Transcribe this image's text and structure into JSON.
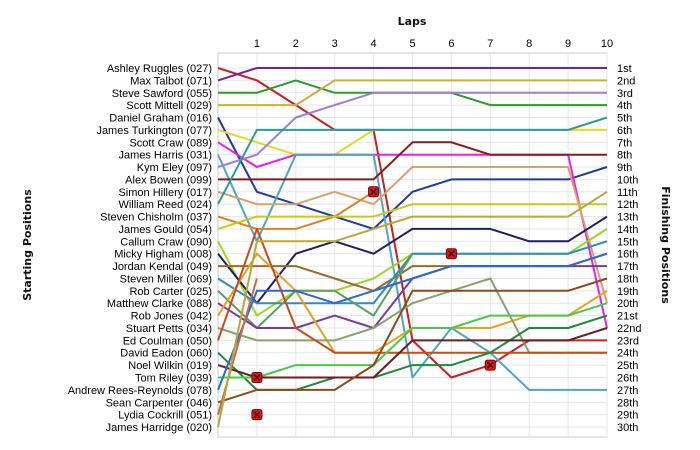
{
  "chart_data": {
    "type": "line",
    "title": "",
    "xlabel": "Laps",
    "ylabel_left": "Starting Positions",
    "ylabel_right": "Finishing Positions",
    "laps": [
      1,
      2,
      3,
      4,
      5,
      6,
      7,
      8,
      9,
      10
    ],
    "lap_labels": [
      "1",
      "2",
      "3",
      "4",
      "5",
      "6",
      "7",
      "8",
      "9",
      "10"
    ],
    "finishing_labels": [
      "1st",
      "2nd",
      "3rd",
      "4th",
      "5th",
      "6th",
      "7th",
      "8th",
      "9th",
      "10th",
      "11th",
      "12th",
      "13th",
      "14th",
      "15th",
      "16th",
      "17th",
      "18th",
      "19th",
      "20th",
      "21st",
      "22nd",
      "23rd",
      "24th",
      "25th",
      "26th",
      "27th",
      "28th",
      "29th",
      "30th"
    ],
    "grid": true,
    "series": [
      {
        "name": "Ashley Ruggles (027)",
        "color": "#cc1f1f",
        "positions": [
          1,
          2,
          4,
          6,
          6,
          23,
          26,
          25,
          23,
          23,
          23
        ],
        "retired_at": null
      },
      {
        "name": "Max Talbot (071)",
        "color": "#7a1f9b",
        "positions": [
          2,
          1,
          1,
          1,
          1,
          1,
          1,
          1,
          1,
          1,
          1
        ],
        "retired_at": null
      },
      {
        "name": "Steve Sawford (055)",
        "color": "#2c9a2c",
        "positions": [
          3,
          3,
          2,
          3,
          3,
          3,
          3,
          4,
          4,
          4,
          4
        ],
        "retired_at": null
      },
      {
        "name": "Scott Mittell (029)",
        "color": "#c8b03a",
        "positions": [
          4,
          4,
          4,
          2,
          2,
          2,
          2,
          2,
          2,
          2,
          2
        ],
        "retired_at": null
      },
      {
        "name": "Daniel Graham (016)",
        "color": "#1f3a9b",
        "positions": [
          5,
          11,
          12,
          13,
          14,
          11,
          10,
          10,
          10,
          10,
          9
        ],
        "retired_at": null
      },
      {
        "name": "James Turkington (077)",
        "color": "#e8d81f",
        "positions": [
          6,
          7,
          8,
          8,
          6,
          6,
          6,
          6,
          6,
          6,
          6
        ],
        "retired_at": null
      },
      {
        "name": "Scott Craw (089)",
        "color": "#e81fe8",
        "positions": [
          7,
          9,
          8,
          8,
          8,
          8,
          8,
          8,
          8,
          8,
          22
        ],
        "retired_at": null
      },
      {
        "name": "James Harris (031)",
        "color": "#4ba6c4",
        "positions": [
          8,
          15,
          8,
          8,
          8,
          26,
          22,
          24,
          27,
          27,
          27
        ],
        "retired_at": null
      },
      {
        "name": "Kym Eley (097)",
        "color": "#9a7fd8",
        "positions": [
          9,
          8,
          5,
          4,
          3,
          3,
          3,
          3,
          3,
          3,
          3
        ],
        "retired_at": null
      },
      {
        "name": "Alex Bowen (099)",
        "color": "#8b1a1a",
        "positions": [
          10,
          10,
          10,
          10,
          10,
          7,
          7,
          8,
          8,
          8,
          8
        ],
        "retired_at": null
      },
      {
        "name": "Simon Hillery (017)",
        "color": "#d8a06a",
        "positions": [
          11,
          12,
          12,
          11,
          12,
          9,
          9,
          9,
          9,
          9,
          20
        ],
        "retired_at": null
      },
      {
        "name": "William Reed (024)",
        "color": "#2a9a9a",
        "positions": [
          12,
          6,
          6,
          6,
          6,
          6,
          6,
          6,
          6,
          6,
          5
        ],
        "retired_at": null
      },
      {
        "name": "Steven Chisholm (037)",
        "color": "#e0801f",
        "positions": [
          13,
          14,
          14,
          13,
          11,
          null,
          null,
          null,
          null,
          null,
          null
        ],
        "retired_at": 4
      },
      {
        "name": "James Gould (054)",
        "color": "#c8c81f",
        "positions": [
          14,
          13,
          13,
          13,
          13,
          12,
          12,
          12,
          12,
          12,
          12
        ],
        "retired_at": null
      },
      {
        "name": "Callum Craw (090)",
        "color": "#9ad81f",
        "positions": [
          15,
          21,
          19,
          19,
          18,
          16,
          16,
          16,
          16,
          16,
          14
        ],
        "retired_at": null
      },
      {
        "name": "Micky Higham (008)",
        "color": "#1f1f6a",
        "positions": [
          16,
          20,
          16,
          15,
          16,
          14,
          14,
          14,
          15,
          15,
          13
        ],
        "retired_at": null
      },
      {
        "name": "Jordan Kendal (049)",
        "color": "#9a6a2a",
        "positions": [
          17,
          17,
          17,
          18,
          19,
          17,
          17,
          17,
          17,
          17,
          16
        ],
        "retired_at": null
      },
      {
        "name": "Steven Miller (069)",
        "color": "#2a8acc",
        "positions": [
          18,
          20,
          20,
          20,
          20,
          16,
          16,
          16,
          16,
          16,
          15
        ],
        "retired_at": null
      },
      {
        "name": "Rob Carter (025)",
        "color": "#5aa05a",
        "positions": [
          19,
          22,
          19,
          19,
          21,
          16,
          null,
          null,
          null,
          null,
          null
        ],
        "retired_at": 6
      },
      {
        "name": "Matthew Clarke (088)",
        "color": "#7a3a9b",
        "positions": [
          20,
          22,
          22,
          21,
          22,
          18,
          17,
          17,
          17,
          17,
          17
        ],
        "retired_at": null
      },
      {
        "name": "Rob Jones (042)",
        "color": "#e8a01f",
        "positions": [
          21,
          16,
          19,
          24,
          24,
          22,
          22,
          22,
          21,
          21,
          19
        ],
        "retired_at": null
      },
      {
        "name": "Stuart Petts (034)",
        "color": "#8aa06a",
        "positions": [
          22,
          23,
          23,
          23,
          22,
          20,
          19,
          18,
          24,
          24,
          24
        ],
        "retired_at": null
      },
      {
        "name": "Ed Coulman (050)",
        "color": "#c84a1f",
        "positions": [
          23,
          14,
          22,
          24,
          24,
          24,
          24,
          24,
          24,
          24,
          24
        ],
        "retired_at": null
      },
      {
        "name": "David Eadon (060)",
        "color": "#1f8a3a",
        "positions": [
          24,
          27,
          27,
          26,
          26,
          25,
          25,
          24,
          22,
          22,
          21
        ],
        "retired_at": null
      },
      {
        "name": "Noel Wilkin (019)",
        "color": "#6a1f1f",
        "positions": [
          25,
          26,
          26,
          26,
          26,
          23,
          23,
          23,
          23,
          23,
          22
        ],
        "retired_at": null
      },
      {
        "name": "Tom Riley (039)",
        "color": "#4ac84a",
        "positions": [
          26,
          26,
          25,
          25,
          25,
          22,
          22,
          21,
          21,
          21,
          20
        ],
        "retired_at": null
      },
      {
        "name": "Andrew Rees-Reynolds (078)",
        "color": "#2a6acc",
        "positions": [
          27,
          19,
          19,
          20,
          19,
          18,
          17,
          17,
          17,
          17,
          16
        ],
        "retired_at": null
      },
      {
        "name": "Sean Carpenter (046)",
        "color": "#8a4a1a",
        "positions": [
          28,
          27,
          27,
          27,
          25,
          19,
          19,
          19,
          19,
          19,
          18
        ],
        "retired_at": null
      },
      {
        "name": "Lydia Cockrill (051)",
        "color": "#c86a4a",
        "positions": [
          29,
          18,
          null,
          null,
          null,
          null,
          null,
          null,
          null,
          null,
          null
        ],
        "retired_at": 1
      },
      {
        "name": "James Harridge (020)",
        "color": "#b8a83a",
        "positions": [
          30,
          15,
          15,
          15,
          14,
          13,
          13,
          13,
          13,
          13,
          11
        ],
        "retired_at": null
      }
    ],
    "retirement_markers": [
      {
        "lap": 1,
        "position": 26
      },
      {
        "lap": 1,
        "position": 29
      },
      {
        "lap": 4,
        "position": 11
      },
      {
        "lap": 6,
        "position": 16
      },
      {
        "lap": 7,
        "position": 25
      }
    ]
  }
}
